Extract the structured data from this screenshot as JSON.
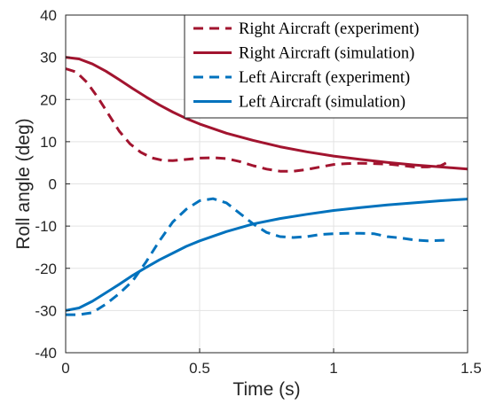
{
  "chart_data": {
    "type": "line",
    "title": "",
    "xlabel": "Time (s)",
    "ylabel": "Roll angle (deg)",
    "xlim": [
      0,
      1.5
    ],
    "ylim": [
      -40,
      40
    ],
    "xticks": [
      0,
      0.5,
      1,
      1.5
    ],
    "xtick_labels": [
      "0",
      "0.5",
      "1",
      "1.5"
    ],
    "yticks": [
      -40,
      -30,
      -20,
      -10,
      0,
      10,
      20,
      30,
      40
    ],
    "ytick_labels": [
      "-40",
      "-30",
      "-20",
      "-10",
      "0",
      "10",
      "20",
      "30",
      "40"
    ],
    "grid": true,
    "legend_position": "top-right",
    "series": [
      {
        "name": "Right Aircraft (experiment)",
        "color": "#a2142f",
        "style": "dashed",
        "x": [
          0,
          0.04,
          0.08,
          0.12,
          0.16,
          0.2,
          0.24,
          0.28,
          0.32,
          0.36,
          0.4,
          0.45,
          0.5,
          0.55,
          0.6,
          0.65,
          0.7,
          0.75,
          0.8,
          0.85,
          0.9,
          0.95,
          1.0,
          1.05,
          1.1,
          1.15,
          1.2,
          1.25,
          1.3,
          1.35,
          1.4,
          1.43
        ],
        "y": [
          27.3,
          26.5,
          24.0,
          20.5,
          16.5,
          12.5,
          9.5,
          7.5,
          6.2,
          5.6,
          5.5,
          5.8,
          6.1,
          6.2,
          6.0,
          5.3,
          4.3,
          3.5,
          3.0,
          3.0,
          3.4,
          4.0,
          4.6,
          4.8,
          4.9,
          4.8,
          4.7,
          4.4,
          4.0,
          4.0,
          4.3,
          5.3
        ]
      },
      {
        "name": "Right Aircraft (simulation)",
        "color": "#a2142f",
        "style": "solid",
        "x": [
          0,
          0.05,
          0.1,
          0.15,
          0.2,
          0.25,
          0.3,
          0.35,
          0.4,
          0.45,
          0.5,
          0.6,
          0.7,
          0.8,
          0.9,
          1.0,
          1.1,
          1.2,
          1.3,
          1.4,
          1.5
        ],
        "y": [
          30.0,
          29.6,
          28.4,
          26.7,
          24.7,
          22.6,
          20.6,
          18.7,
          17.0,
          15.5,
          14.2,
          12.0,
          10.3,
          8.8,
          7.6,
          6.6,
          5.8,
          5.1,
          4.5,
          4.0,
          3.5
        ]
      },
      {
        "name": "Left Aircraft (experiment)",
        "color": "#0072bd",
        "style": "dashed",
        "x": [
          0,
          0.05,
          0.1,
          0.15,
          0.2,
          0.25,
          0.3,
          0.35,
          0.4,
          0.45,
          0.5,
          0.55,
          0.6,
          0.65,
          0.7,
          0.75,
          0.8,
          0.85,
          0.9,
          0.95,
          1.0,
          1.05,
          1.1,
          1.15,
          1.2,
          1.25,
          1.3,
          1.35,
          1.4,
          1.43
        ],
        "y": [
          -31.0,
          -31.0,
          -30.5,
          -28.5,
          -26.0,
          -23.0,
          -18.5,
          -13.5,
          -9.0,
          -6.0,
          -4.0,
          -3.5,
          -4.5,
          -7.0,
          -9.5,
          -11.5,
          -12.5,
          -12.7,
          -12.5,
          -12.0,
          -11.8,
          -11.7,
          -11.7,
          -11.8,
          -12.5,
          -12.8,
          -13.3,
          -13.5,
          -13.4,
          -13.3
        ]
      },
      {
        "name": "Left Aircraft (simulation)",
        "color": "#0072bd",
        "style": "solid",
        "x": [
          0,
          0.05,
          0.1,
          0.15,
          0.2,
          0.25,
          0.3,
          0.35,
          0.4,
          0.45,
          0.5,
          0.6,
          0.7,
          0.8,
          0.9,
          1.0,
          1.1,
          1.2,
          1.3,
          1.4,
          1.5
        ],
        "y": [
          -30.0,
          -29.4,
          -27.8,
          -25.8,
          -23.8,
          -21.7,
          -19.8,
          -18.0,
          -16.4,
          -14.8,
          -13.5,
          -11.3,
          -9.5,
          -8.2,
          -7.2,
          -6.3,
          -5.6,
          -5.0,
          -4.5,
          -4.0,
          -3.6
        ]
      }
    ]
  }
}
